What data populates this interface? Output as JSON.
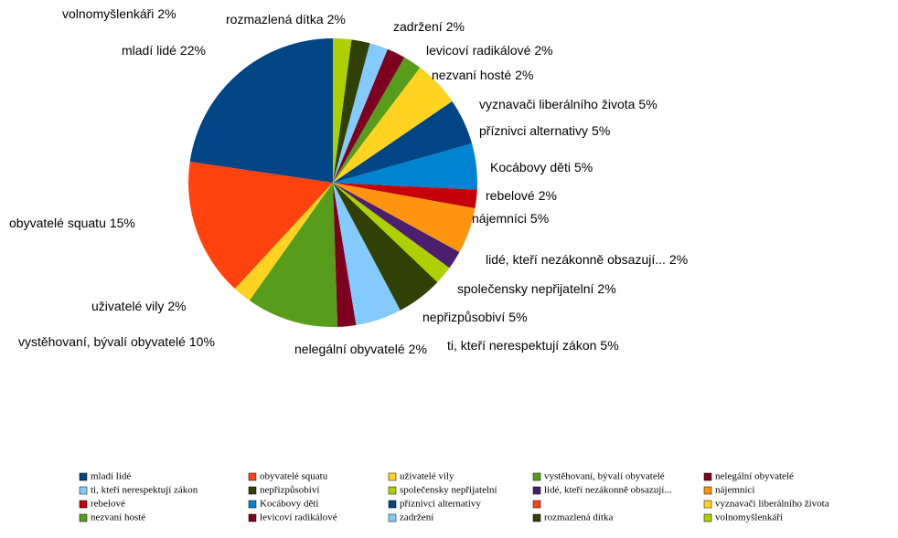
{
  "chart_data": {
    "type": "pie",
    "categories": [
      "mladí lidé",
      "obyvatelé squatu",
      "uživatelé vily",
      "vystěhovaní, bývalí obyvatelé",
      "nelegální obyvatelé",
      "ti, kteří nerespektují zákon",
      "nepřizpůsobiví",
      "společensky nepřijatelní",
      "lidé, kteří nezákonně obsazují...",
      "nájemníci",
      "rebelové",
      "Kocábovy děti",
      "příznivci alternativy",
      null,
      "vyznavači liberálního života",
      "nezvaní hosté",
      "levicoví radikálové",
      "zadržení",
      "rozmazlená dítka",
      "volnomyšlenkáři"
    ],
    "values": [
      22,
      15,
      2,
      10,
      2,
      5,
      5,
      2,
      2,
      5,
      2,
      5,
      5,
      0,
      5,
      2,
      2,
      2,
      2,
      2
    ],
    "value_labels": [
      "22%",
      "15%",
      "2%",
      "10%",
      "2%",
      "5%",
      "5%",
      "2%",
      "2%",
      "5%",
      "2%",
      "5%",
      "5%",
      null,
      "5%",
      "2%",
      "2%",
      "2%",
      "2%",
      "2%"
    ],
    "colors": [
      "#004586",
      "#ff420e",
      "#ffd320",
      "#579d1c",
      "#7e0021",
      "#83caff",
      "#314004",
      "#aecf00",
      "#4b1f6f",
      "#ff950e",
      "#c5000b",
      "#0084d1",
      "#004586",
      "#ff420e",
      "#ffd320",
      "#579d1c",
      "#7e0021",
      "#83caff",
      "#314004",
      "#aecf00"
    ],
    "legend": "bottom"
  }
}
